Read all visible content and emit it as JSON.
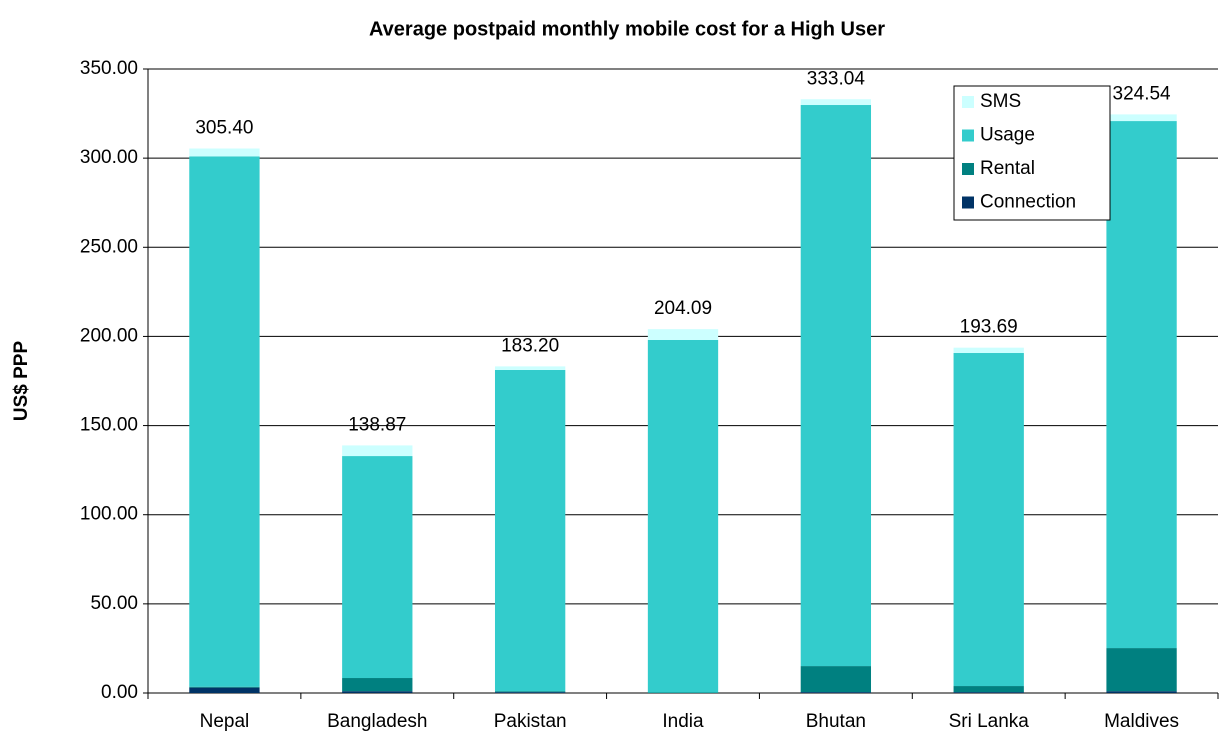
{
  "chart_data": {
    "type": "stacked_bar",
    "title": "Average postpaid monthly mobile cost for a High User",
    "y_label": "US$ PPP",
    "categories": [
      "Nepal",
      "Bangladesh",
      "Pakistan",
      "India",
      "Bhutan",
      "Sri Lanka",
      "Maldives"
    ],
    "series": [
      {
        "name": "Connection",
        "color": "#003366",
        "values": [
          3.0,
          1.0,
          0.5,
          0,
          0.5,
          0.5,
          1.0
        ]
      },
      {
        "name": "Rental",
        "color": "#008080",
        "values": [
          0.5,
          7.4,
          0.5,
          0.3,
          14.6,
          3.4,
          24.2
        ]
      },
      {
        "name": "Usage",
        "color": "#33cccc",
        "values": [
          297.5,
          124.5,
          180.2,
          197.7,
          314.7,
          186.8,
          295.6
        ]
      },
      {
        "name": "SMS",
        "color": "#ccffff",
        "values": [
          4.4,
          5.97,
          2.0,
          6.09,
          3.24,
          2.99,
          3.74
        ]
      }
    ],
    "totals": [
      305.4,
      138.87,
      183.2,
      204.09,
      333.04,
      193.69,
      324.54
    ],
    "total_labels": [
      "305.40",
      "138.87",
      "183.20",
      "204.09",
      "333.04",
      "193.69",
      "324.54"
    ],
    "ylim": [
      0,
      350
    ],
    "yticks": [
      {
        "value": 0,
        "label": "0.00"
      },
      {
        "value": 50,
        "label": "50.00"
      },
      {
        "value": 100,
        "label": "100.00"
      },
      {
        "value": 150,
        "label": "150.00"
      },
      {
        "value": 200,
        "label": "200.00"
      },
      {
        "value": 250,
        "label": "250.00"
      },
      {
        "value": 300,
        "label": "300.00"
      },
      {
        "value": 350,
        "label": "350.00"
      }
    ],
    "grid": true,
    "legend": "upper right"
  }
}
